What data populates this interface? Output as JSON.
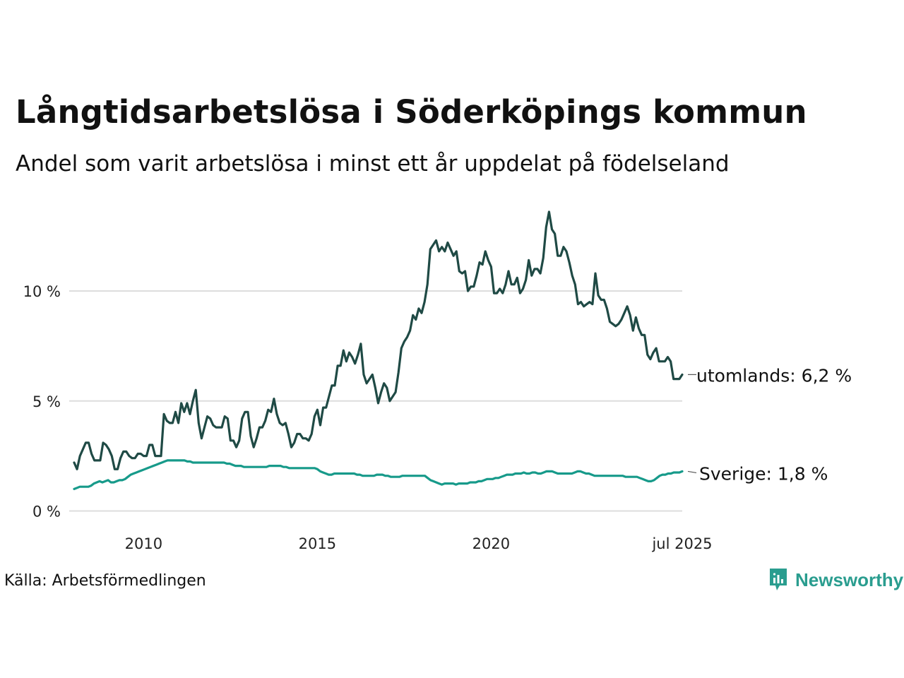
{
  "title": "Långtidsarbetslösa i Söderköpings kommun",
  "subtitle": "Andel som varit arbetslösa i minst ett år uppdelat på födelseland",
  "source": "Källa: Arbetsförmedlingen",
  "brand": "Newsworthy",
  "colors": {
    "utomlands": "#1f4a45",
    "sverige": "#179a8a",
    "grid": "#dddddd",
    "brand": "#2a9d8f"
  },
  "chart_data": {
    "type": "line",
    "x_start": "2008-01",
    "x_end": "2025-07",
    "x_ticks": [
      {
        "value": 2010,
        "label": "2010"
      },
      {
        "value": 2015,
        "label": "2015"
      },
      {
        "value": 2020,
        "label": "2020"
      },
      {
        "value": 2025.5,
        "label": "jul 2025"
      }
    ],
    "y_ticks": [
      {
        "value": 0,
        "label": "0 %"
      },
      {
        "value": 5,
        "label": "5 %"
      },
      {
        "value": 10,
        "label": "10 %"
      }
    ],
    "ylim": [
      0,
      13.8
    ],
    "grid": true,
    "series": [
      {
        "name": "utomlands",
        "end_label": "utomlands: 6,2 %",
        "values": [
          2.2,
          1.9,
          2.5,
          2.8,
          3.1,
          3.1,
          2.6,
          2.3,
          2.3,
          2.3,
          3.1,
          3.0,
          2.8,
          2.5,
          1.9,
          1.9,
          2.4,
          2.7,
          2.7,
          2.5,
          2.4,
          2.4,
          2.6,
          2.6,
          2.5,
          2.5,
          3.0,
          3.0,
          2.5,
          2.5,
          2.5,
          4.4,
          4.1,
          4.0,
          4.0,
          4.5,
          4.0,
          4.9,
          4.5,
          4.9,
          4.4,
          5.0,
          5.5,
          4.0,
          3.3,
          3.8,
          4.3,
          4.2,
          3.9,
          3.8,
          3.8,
          3.8,
          4.3,
          4.2,
          3.2,
          3.2,
          2.9,
          3.2,
          4.2,
          4.5,
          4.5,
          3.4,
          2.9,
          3.3,
          3.8,
          3.8,
          4.1,
          4.6,
          4.5,
          5.1,
          4.4,
          4.0,
          3.9,
          4.0,
          3.5,
          2.9,
          3.1,
          3.5,
          3.5,
          3.3,
          3.3,
          3.2,
          3.5,
          4.3,
          4.6,
          3.9,
          4.7,
          4.7,
          5.2,
          5.7,
          5.7,
          6.6,
          6.6,
          7.3,
          6.8,
          7.2,
          7.0,
          6.7,
          7.1,
          7.6,
          6.2,
          5.8,
          6.0,
          6.2,
          5.6,
          4.9,
          5.4,
          5.8,
          5.6,
          5.0,
          5.2,
          5.4,
          6.3,
          7.4,
          7.7,
          7.9,
          8.2,
          8.9,
          8.7,
          9.2,
          9.0,
          9.5,
          10.3,
          11.9,
          12.1,
          12.3,
          11.8,
          12.0,
          11.8,
          12.2,
          11.9,
          11.6,
          11.8,
          10.9,
          10.8,
          10.9,
          10.0,
          10.2,
          10.2,
          10.7,
          11.3,
          11.2,
          11.8,
          11.4,
          11.1,
          9.9,
          9.9,
          10.1,
          9.9,
          10.3,
          10.9,
          10.3,
          10.3,
          10.6,
          9.9,
          10.1,
          10.5,
          11.4,
          10.7,
          11.0,
          11.0,
          10.8,
          11.5,
          12.9,
          13.6,
          12.8,
          12.6,
          11.6,
          11.6,
          12.0,
          11.8,
          11.3,
          10.7,
          10.3,
          9.4,
          9.5,
          9.3,
          9.4,
          9.5,
          9.4,
          10.8,
          9.8,
          9.6,
          9.6,
          9.2,
          8.6,
          8.5,
          8.4,
          8.5,
          8.7,
          9.0,
          9.3,
          8.9,
          8.2,
          8.8,
          8.3,
          8.0,
          8.0,
          7.1,
          6.9,
          7.2,
          7.4,
          6.8,
          6.8,
          6.8,
          7.0,
          6.8,
          6.0,
          6.0,
          6.0,
          6.2
        ]
      },
      {
        "name": "Sverige",
        "end_label": "Sverige: 1,8 %",
        "values": [
          1.0,
          1.05,
          1.1,
          1.1,
          1.1,
          1.1,
          1.15,
          1.25,
          1.3,
          1.35,
          1.3,
          1.35,
          1.4,
          1.3,
          1.3,
          1.35,
          1.4,
          1.4,
          1.45,
          1.55,
          1.65,
          1.7,
          1.75,
          1.8,
          1.85,
          1.9,
          1.95,
          2.0,
          2.05,
          2.1,
          2.15,
          2.2,
          2.25,
          2.3,
          2.3,
          2.3,
          2.3,
          2.3,
          2.3,
          2.3,
          2.25,
          2.25,
          2.2,
          2.2,
          2.2,
          2.2,
          2.2,
          2.2,
          2.2,
          2.2,
          2.2,
          2.2,
          2.2,
          2.2,
          2.15,
          2.15,
          2.1,
          2.05,
          2.05,
          2.05,
          2.0,
          2.0,
          2.0,
          2.0,
          2.0,
          2.0,
          2.0,
          2.0,
          2.0,
          2.05,
          2.05,
          2.05,
          2.05,
          2.05,
          2.0,
          2.0,
          1.95,
          1.95,
          1.95,
          1.95,
          1.95,
          1.95,
          1.95,
          1.95,
          1.95,
          1.95,
          1.9,
          1.8,
          1.75,
          1.7,
          1.65,
          1.65,
          1.7,
          1.7,
          1.7,
          1.7,
          1.7,
          1.7,
          1.7,
          1.7,
          1.65,
          1.65,
          1.6,
          1.6,
          1.6,
          1.6,
          1.6,
          1.65,
          1.65,
          1.65,
          1.6,
          1.6,
          1.55,
          1.55,
          1.55,
          1.55,
          1.6,
          1.6,
          1.6,
          1.6,
          1.6,
          1.6,
          1.6,
          1.6,
          1.6,
          1.5,
          1.4,
          1.35,
          1.3,
          1.25,
          1.2,
          1.25,
          1.25,
          1.25,
          1.25,
          1.2,
          1.25,
          1.25,
          1.25,
          1.25,
          1.3,
          1.3,
          1.3,
          1.35,
          1.35,
          1.4,
          1.45,
          1.45,
          1.45,
          1.5,
          1.5,
          1.55,
          1.6,
          1.65,
          1.65,
          1.65,
          1.7,
          1.7,
          1.7,
          1.75,
          1.7,
          1.7,
          1.75,
          1.75,
          1.7,
          1.7,
          1.75,
          1.8,
          1.8,
          1.8,
          1.75,
          1.7,
          1.7,
          1.7,
          1.7,
          1.7,
          1.7,
          1.75,
          1.8,
          1.8,
          1.75,
          1.7,
          1.7,
          1.65,
          1.6,
          1.6,
          1.6,
          1.6,
          1.6,
          1.6,
          1.6,
          1.6,
          1.6,
          1.6,
          1.6,
          1.55,
          1.55,
          1.55,
          1.55,
          1.55,
          1.5,
          1.45,
          1.4,
          1.35,
          1.35,
          1.4,
          1.5,
          1.6,
          1.65,
          1.65,
          1.7,
          1.7,
          1.75,
          1.75,
          1.75,
          1.8
        ]
      }
    ]
  }
}
